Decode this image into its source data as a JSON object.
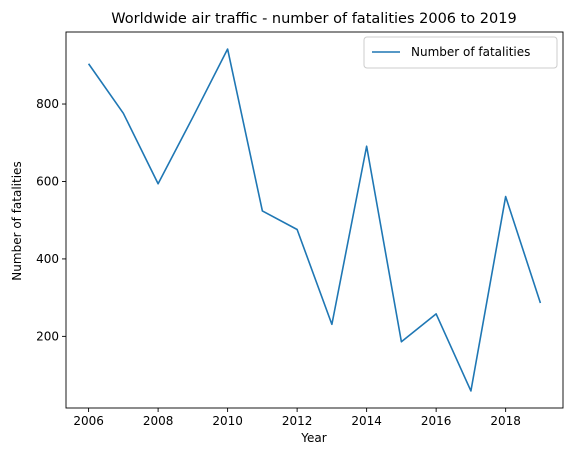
{
  "chart_data": {
    "type": "line",
    "title": "Worldwide air traffic - number of fatalities 2006 to 2019",
    "xlabel": "Year",
    "ylabel": "Number of fatalities",
    "x": [
      2006,
      2007,
      2008,
      2009,
      2010,
      2011,
      2012,
      2013,
      2014,
      2015,
      2016,
      2017,
      2018,
      2019
    ],
    "series": [
      {
        "name": "Number of fatalities",
        "color": "#1f77b4",
        "values": [
          904,
          776,
          594,
          766,
          942,
          524,
          476,
          231,
          691,
          186,
          258,
          59,
          561,
          286
        ]
      }
    ],
    "xlim": [
      2005.35,
      2019.65
    ],
    "ylim": [
      15,
      986
    ],
    "xticks": [
      2006,
      2008,
      2010,
      2012,
      2014,
      2016,
      2018
    ],
    "yticks": [
      200,
      400,
      600,
      800
    ],
    "grid": false,
    "legend": "top-right"
  }
}
